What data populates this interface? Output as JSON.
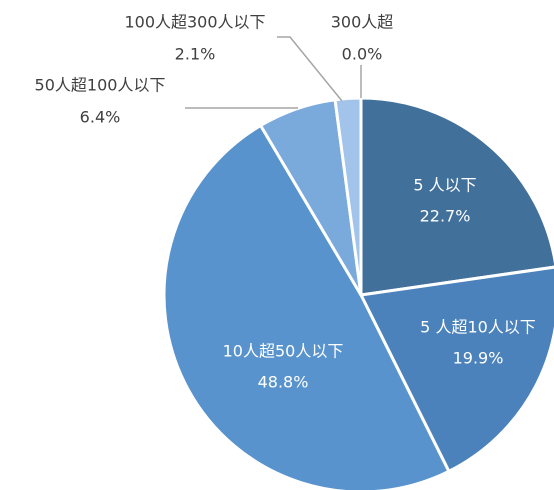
{
  "chart_data": {
    "type": "pie",
    "start": "12 o'clock",
    "direction": "clockwise",
    "slices": [
      {
        "name": "5 人以下",
        "percent_label": "22.7%",
        "value": 22.7,
        "color": "#41709b"
      },
      {
        "name": "5 人超10人以下",
        "percent_label": "19.9%",
        "value": 19.9,
        "color": "#4b82bb"
      },
      {
        "name": "10人超50人以下",
        "percent_label": "48.8%",
        "value": 48.8,
        "color": "#5893cd"
      },
      {
        "name": "50人超100人以下",
        "percent_label": "6.4%",
        "value": 6.4,
        "color": "#7aa9dc"
      },
      {
        "name": "100人超300人以下",
        "percent_label": "2.1%",
        "value": 2.1,
        "color": "#a3c4ea"
      },
      {
        "name": "300人超",
        "percent_label": "0.0%",
        "value": 0.0,
        "color": "#bcd4f0"
      }
    ]
  }
}
